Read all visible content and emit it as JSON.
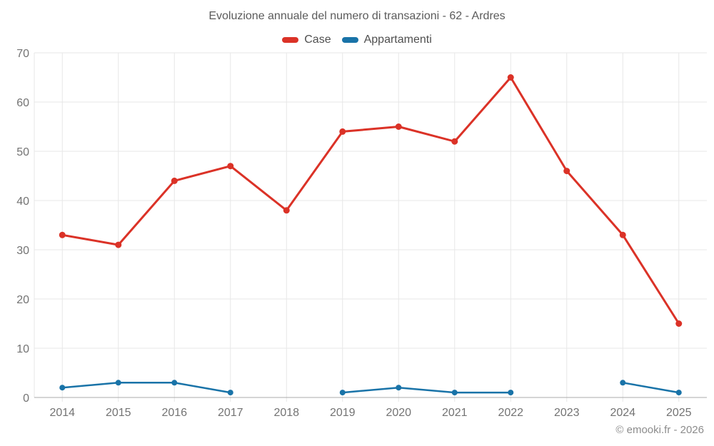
{
  "title": "Evoluzione annuale del numero di transazioni - 62 - Ardres",
  "footer": "© emooki.fr - 2026",
  "chart_data": {
    "type": "line",
    "title": "Evoluzione annuale del numero di transazioni - 62 - Ardres",
    "categories": [
      "2014",
      "2015",
      "2016",
      "2017",
      "2018",
      "2019",
      "2020",
      "2021",
      "2022",
      "2023",
      "2024",
      "2025"
    ],
    "series": [
      {
        "name": "Case",
        "color": "#db3227",
        "width": 3,
        "marker_radius": 4.5,
        "values": [
          33,
          31,
          44,
          47,
          38,
          54,
          55,
          52,
          65,
          46,
          33,
          15
        ]
      },
      {
        "name": "Appartamenti",
        "color": "#1973a8",
        "width": 2.5,
        "marker_radius": 4,
        "values": [
          2,
          3,
          3,
          1,
          null,
          1,
          2,
          1,
          1,
          null,
          3,
          1
        ]
      }
    ],
    "ylim": [
      0,
      70
    ],
    "ytick_step": 10,
    "grid": true,
    "legend_position": "top",
    "grid_color": "#e7e7e7",
    "axis_color": "#ababab",
    "label_color": "#737373",
    "tick_font_size": 16
  }
}
